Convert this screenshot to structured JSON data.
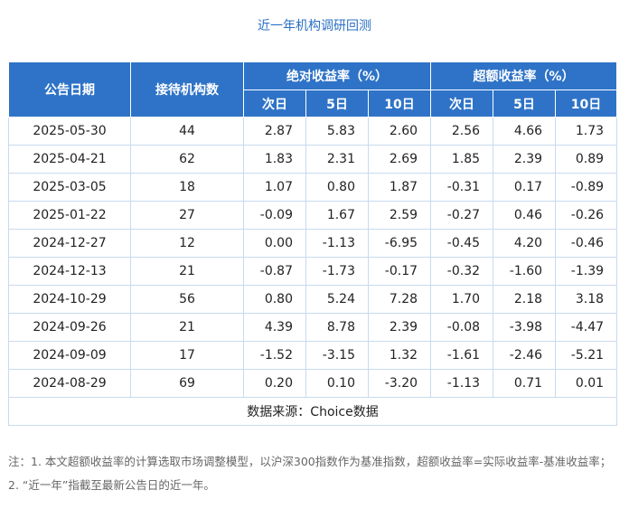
{
  "title": "近一年机构调研回测",
  "headers": {
    "date": "公告日期",
    "count": "接待机构数",
    "abs_group": "绝对收益率（%）",
    "excess_group": "超额收益率（%）",
    "sub": [
      "次日",
      "5日",
      "10日",
      "次日",
      "5日",
      "10日"
    ]
  },
  "rows": [
    {
      "date": "2025-05-30",
      "count": "44",
      "vals": [
        "2.87",
        "5.83",
        "2.60",
        "2.56",
        "4.66",
        "1.73"
      ]
    },
    {
      "date": "2025-04-21",
      "count": "62",
      "vals": [
        "1.83",
        "2.31",
        "2.69",
        "1.85",
        "2.39",
        "0.89"
      ]
    },
    {
      "date": "2025-03-05",
      "count": "18",
      "vals": [
        "1.07",
        "0.80",
        "1.87",
        "-0.31",
        "0.17",
        "-0.89"
      ]
    },
    {
      "date": "2025-01-22",
      "count": "27",
      "vals": [
        "-0.09",
        "1.67",
        "2.59",
        "-0.27",
        "0.46",
        "-0.26"
      ]
    },
    {
      "date": "2024-12-27",
      "count": "12",
      "vals": [
        "0.00",
        "-1.13",
        "-6.95",
        "-0.45",
        "4.20",
        "-0.46"
      ]
    },
    {
      "date": "2024-12-13",
      "count": "21",
      "vals": [
        "-0.87",
        "-1.73",
        "-0.17",
        "-0.32",
        "-1.60",
        "-1.39"
      ]
    },
    {
      "date": "2024-10-29",
      "count": "56",
      "vals": [
        "0.80",
        "5.24",
        "7.28",
        "1.70",
        "2.18",
        "3.18"
      ]
    },
    {
      "date": "2024-09-26",
      "count": "21",
      "vals": [
        "4.39",
        "8.78",
        "2.39",
        "-0.08",
        "-3.98",
        "-4.47"
      ]
    },
    {
      "date": "2024-09-09",
      "count": "17",
      "vals": [
        "-1.52",
        "-3.15",
        "1.32",
        "-1.61",
        "-2.46",
        "-5.21"
      ]
    },
    {
      "date": "2024-08-29",
      "count": "69",
      "vals": [
        "0.20",
        "0.10",
        "-3.20",
        "-1.13",
        "0.71",
        "0.01"
      ]
    }
  ],
  "source": "数据来源：Choice数据",
  "note": "注：1. 本文超额收益率的计算选取市场调整模型，以沪深300指数作为基准指数，超额收益率=实际收益率-基准收益率；2. “近一年”指截至最新公告日的近一年。"
}
